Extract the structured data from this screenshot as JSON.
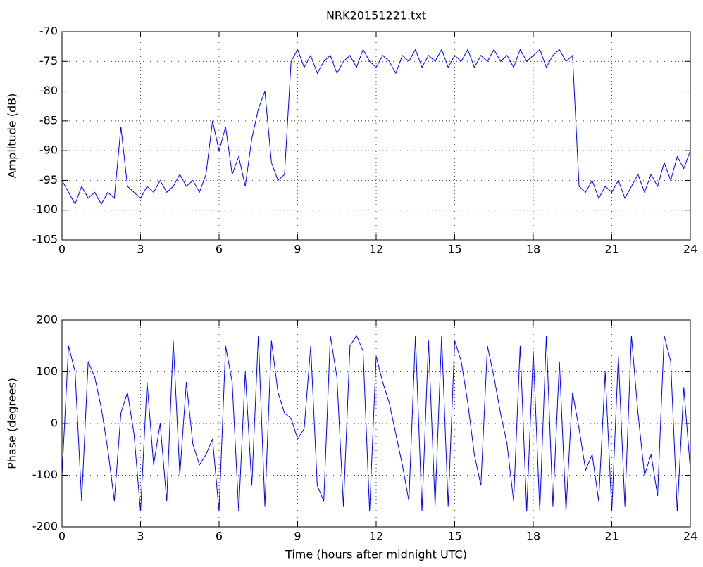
{
  "chart_data": [
    {
      "type": "line",
      "title": "NRK20151221.txt",
      "ylabel": "Amplitude (dB)",
      "x": [
        0,
        0.25,
        0.5,
        0.75,
        1,
        1.25,
        1.5,
        1.75,
        2,
        2.25,
        2.5,
        2.75,
        3,
        3.25,
        3.5,
        3.75,
        4,
        4.25,
        4.5,
        4.75,
        5,
        5.25,
        5.5,
        5.75,
        6,
        6.25,
        6.5,
        6.75,
        7,
        7.25,
        7.5,
        7.75,
        8,
        8.25,
        8.5,
        8.75,
        9,
        9.25,
        9.5,
        9.75,
        10,
        10.25,
        10.5,
        10.75,
        11,
        11.25,
        11.5,
        11.75,
        12,
        12.25,
        12.5,
        12.75,
        13,
        13.25,
        13.5,
        13.75,
        14,
        14.25,
        14.5,
        14.75,
        15,
        15.25,
        15.5,
        15.75,
        16,
        16.25,
        16.5,
        16.75,
        17,
        17.25,
        17.5,
        17.75,
        18,
        18.25,
        18.5,
        18.75,
        19,
        19.25,
        19.5,
        19.75,
        20,
        20.25,
        20.5,
        20.75,
        21,
        21.25,
        21.5,
        21.75,
        22,
        22.25,
        22.5,
        22.75,
        23,
        23.25,
        23.5,
        23.75,
        24
      ],
      "series": [
        {
          "color": "#0000ff",
          "values": [
            -95,
            -97,
            -99,
            -96,
            -98,
            -97,
            -99,
            -97,
            -98,
            -86,
            -96,
            -97,
            -98,
            -96,
            -97,
            -95,
            -97,
            -96,
            -94,
            -96,
            -95,
            -97,
            -94,
            -85,
            -90,
            -86,
            -94,
            -91,
            -96,
            -88,
            -83,
            -80,
            -92,
            -95,
            -94,
            -75,
            -73,
            -76,
            -74,
            -77,
            -75,
            -74,
            -77,
            -75,
            -74,
            -76,
            -73,
            -75,
            -76,
            -74,
            -75,
            -77,
            -74,
            -75,
            -73,
            -76,
            -74,
            -75,
            -73,
            -76,
            -74,
            -75,
            -73,
            -76,
            -74,
            -75,
            -73,
            -75,
            -74,
            -76,
            -73,
            -75,
            -74,
            -73,
            -76,
            -74,
            -73,
            -75,
            -74,
            -96,
            -97,
            -95,
            -98,
            -96,
            -97,
            -95,
            -98,
            -96,
            -94,
            -97,
            -94,
            -96,
            -92,
            -95,
            -91,
            -93,
            -90
          ]
        }
      ],
      "xlim": [
        0,
        24
      ],
      "xticks": [
        0,
        3,
        6,
        9,
        12,
        15,
        18,
        21,
        24
      ],
      "ylim": [
        -105,
        -70
      ],
      "yticks": [
        -105,
        -100,
        -95,
        -90,
        -85,
        -80,
        -75,
        -70
      ],
      "grid": true
    },
    {
      "type": "line",
      "xlabel": "Time (hours after midnight UTC)",
      "ylabel": "Phase (degrees)",
      "x": [
        0,
        0.25,
        0.5,
        0.75,
        1,
        1.25,
        1.5,
        1.75,
        2,
        2.25,
        2.5,
        2.75,
        3,
        3.25,
        3.5,
        3.75,
        4,
        4.25,
        4.5,
        4.75,
        5,
        5.25,
        5.5,
        5.75,
        6,
        6.25,
        6.5,
        6.75,
        7,
        7.25,
        7.5,
        7.75,
        8,
        8.25,
        8.5,
        8.75,
        9,
        9.25,
        9.5,
        9.75,
        10,
        10.25,
        10.5,
        10.75,
        11,
        11.25,
        11.5,
        11.75,
        12,
        12.25,
        12.5,
        12.75,
        13,
        13.25,
        13.5,
        13.75,
        14,
        14.25,
        14.5,
        14.75,
        15,
        15.25,
        15.5,
        15.75,
        16,
        16.25,
        16.5,
        16.75,
        17,
        17.25,
        17.5,
        17.75,
        18,
        18.25,
        18.5,
        18.75,
        19,
        19.25,
        19.5,
        19.75,
        20,
        20.25,
        20.5,
        20.75,
        21,
        21.25,
        21.5,
        21.75,
        22,
        22.25,
        22.5,
        22.75,
        23,
        23.25,
        23.5,
        23.75,
        24
      ],
      "series": [
        {
          "color": "#0000ff",
          "values": [
            -100,
            150,
            100,
            -150,
            120,
            90,
            30,
            -50,
            -150,
            20,
            60,
            -20,
            -170,
            80,
            -80,
            0,
            -150,
            160,
            -100,
            80,
            -40,
            -80,
            -60,
            -30,
            -170,
            150,
            80,
            -170,
            100,
            -120,
            170,
            -160,
            160,
            60,
            20,
            10,
            -30,
            -10,
            150,
            -120,
            -150,
            170,
            90,
            -160,
            150,
            170,
            140,
            -170,
            130,
            80,
            40,
            -20,
            -80,
            -150,
            170,
            -170,
            160,
            -160,
            170,
            -160,
            160,
            120,
            40,
            -60,
            -120,
            150,
            90,
            20,
            -40,
            -150,
            150,
            -170,
            140,
            -170,
            170,
            -160,
            120,
            -170,
            60,
            -10,
            -90,
            -60,
            -150,
            100,
            -170,
            130,
            -160,
            170,
            20,
            -100,
            -60,
            -140,
            170,
            120,
            -170,
            70,
            -90
          ]
        }
      ],
      "xlim": [
        0,
        24
      ],
      "xticks": [
        0,
        3,
        6,
        9,
        12,
        15,
        18,
        21,
        24
      ],
      "ylim": [
        -200,
        200
      ],
      "yticks": [
        -200,
        -100,
        0,
        100,
        200
      ],
      "grid": true
    }
  ]
}
